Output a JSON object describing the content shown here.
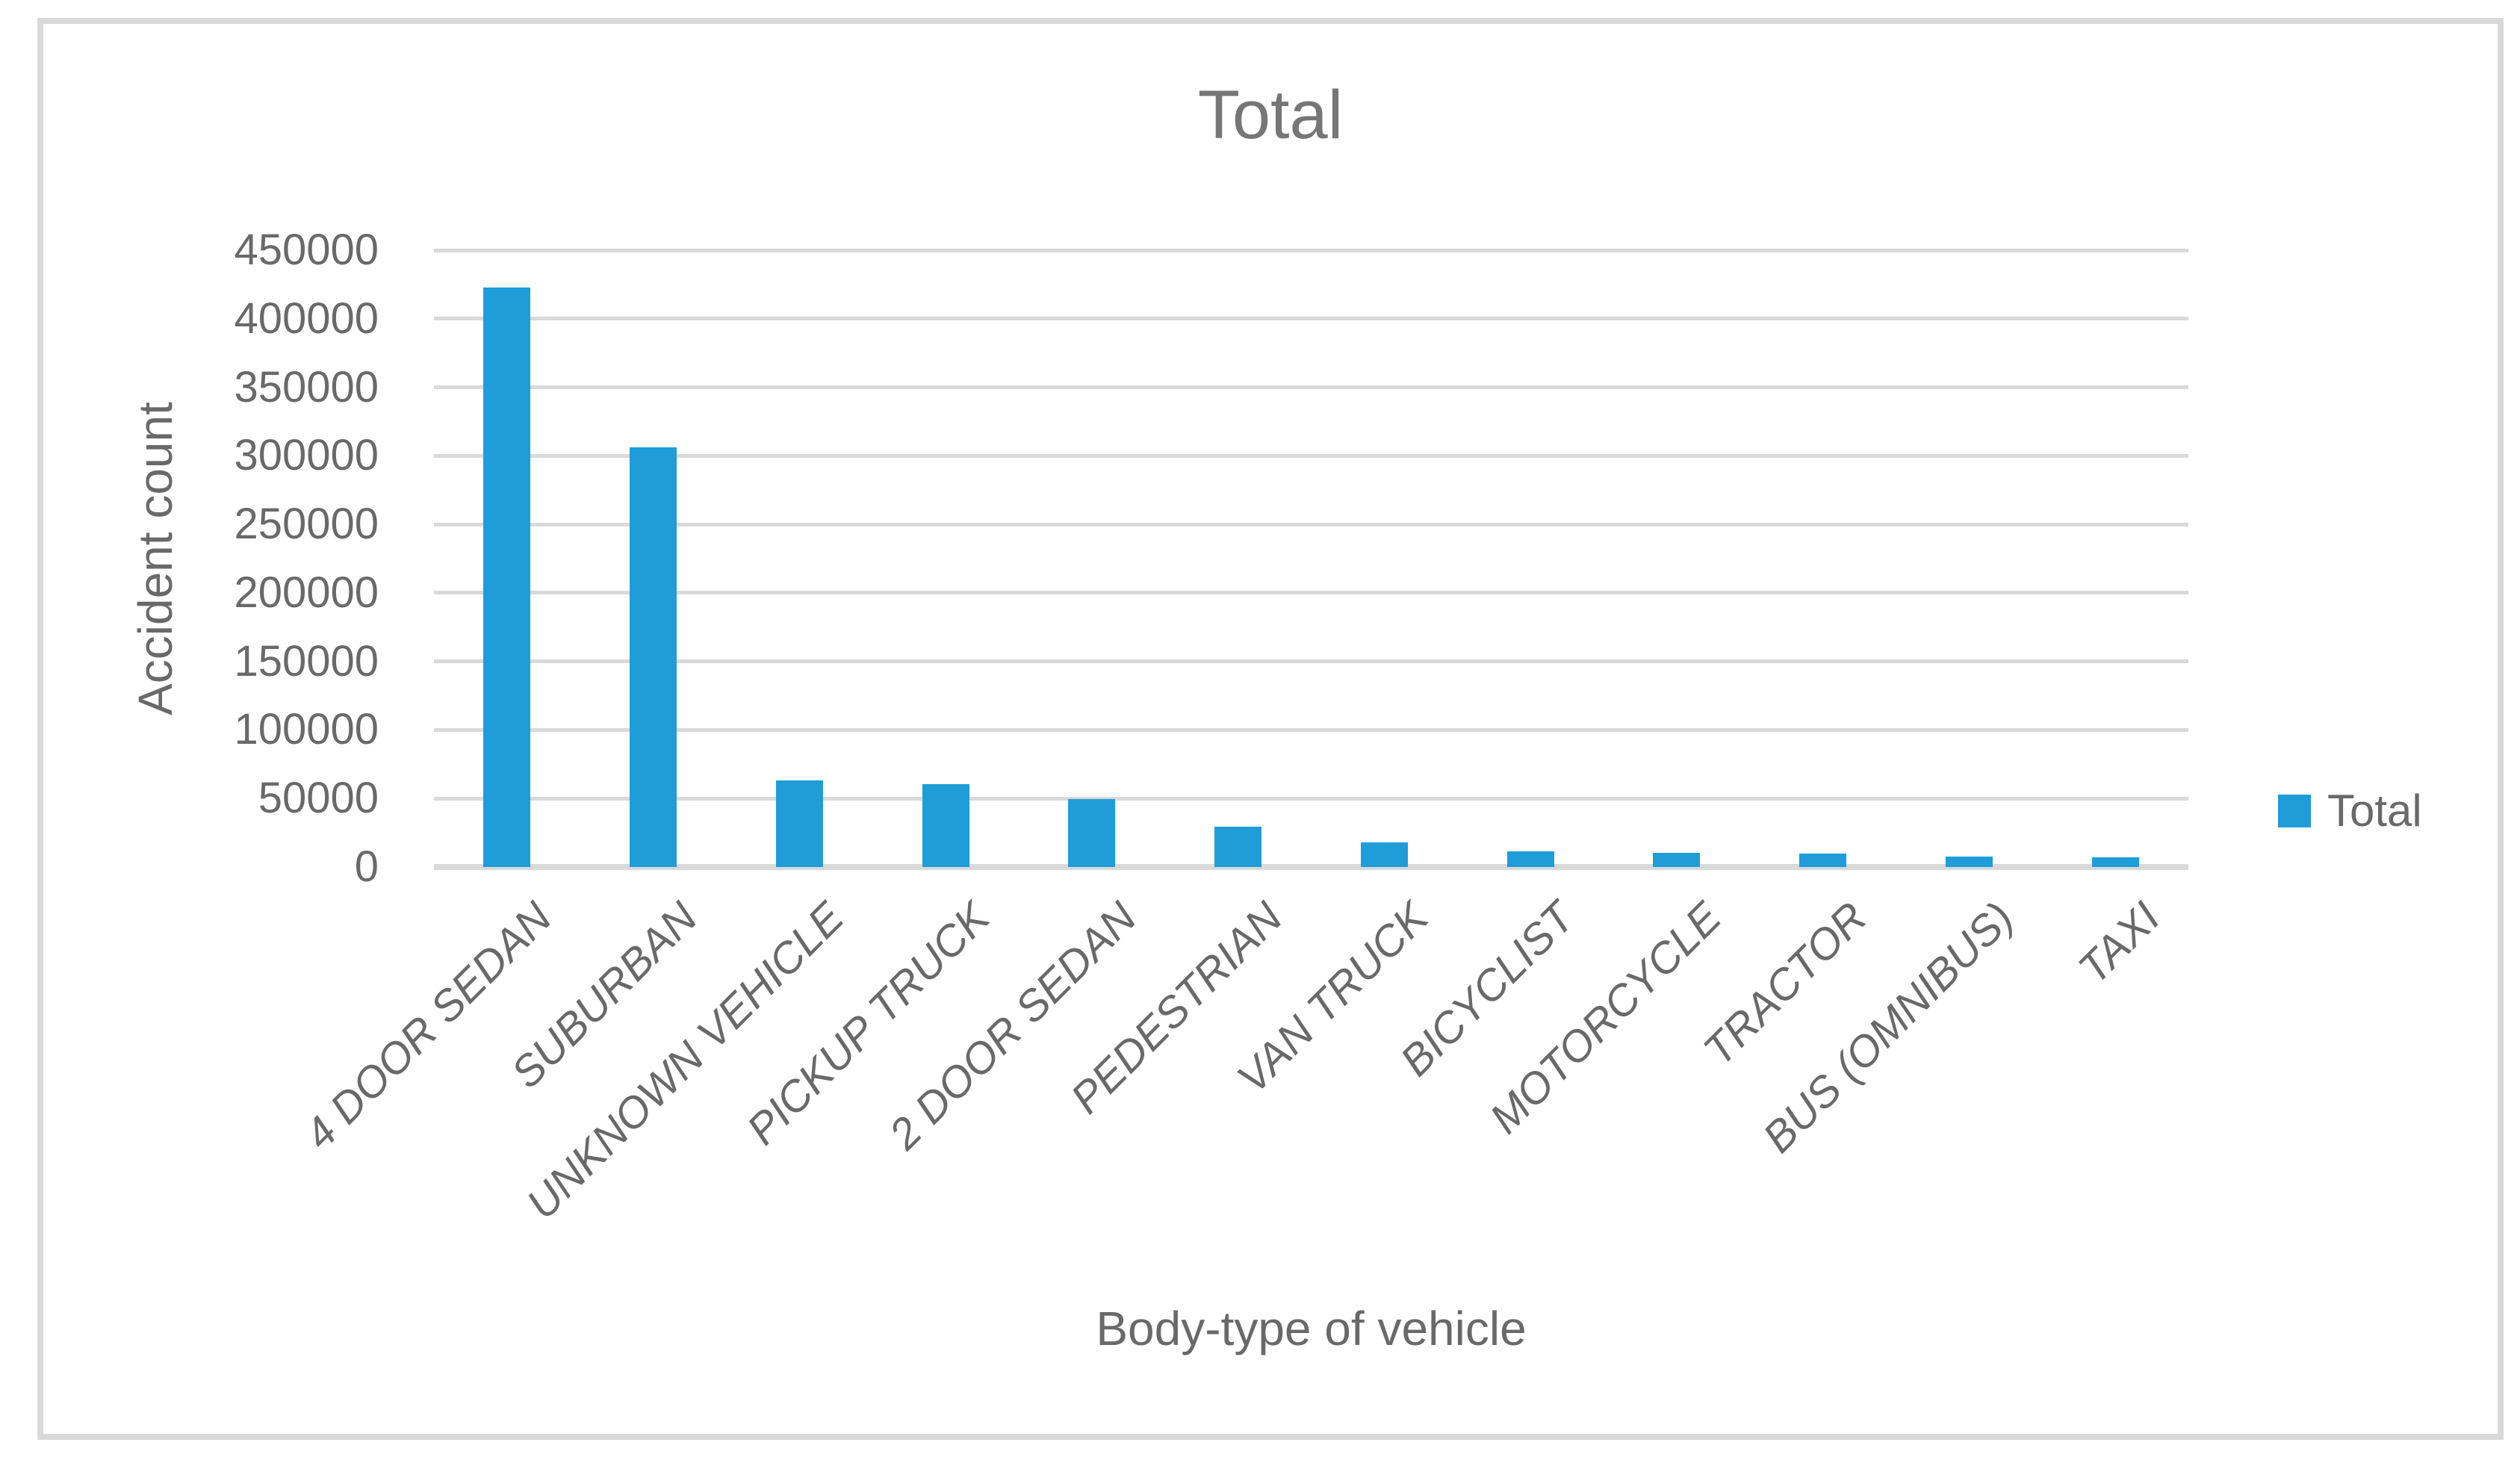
{
  "chart": {
    "title": "Total",
    "y_axis_title": "Accident count",
    "x_axis_title": "Body-type of vehicle",
    "legend_label": "Total",
    "accent_color": "#1E9DD8",
    "gridline_color": "#D9D9D9",
    "text_color": "#696969"
  },
  "chart_data": {
    "type": "bar",
    "title": "Total",
    "xlabel": "Body-type of vehicle",
    "ylabel": "Accident count",
    "categories": [
      "4 DOOR SEDAN",
      "SUBURBAN",
      "UNKNOWN VEHICLE",
      "PICKUP TRUCK",
      "2 DOOR SEDAN",
      "PEDESTRIAN",
      "VAN TRUCK",
      "BICYCLIST",
      "MOTORCYCLE",
      "TRACTOR",
      "BUS (OMNIBUS)",
      "TAXI"
    ],
    "series": [
      {
        "name": "Total",
        "color": "#1E9DD8",
        "values": [
          423000,
          306000,
          63000,
          60500,
          49500,
          29500,
          18000,
          11700,
          10600,
          9600,
          7400,
          6900
        ]
      }
    ],
    "ylim": [
      0,
      450000
    ],
    "ytick_interval": 50000,
    "yticks": [
      0,
      50000,
      100000,
      150000,
      200000,
      250000,
      300000,
      350000,
      400000,
      450000
    ],
    "grid": "horizontal",
    "legend_position": "right",
    "category_label_rotation_deg": 45,
    "category_label_style": "italic"
  }
}
